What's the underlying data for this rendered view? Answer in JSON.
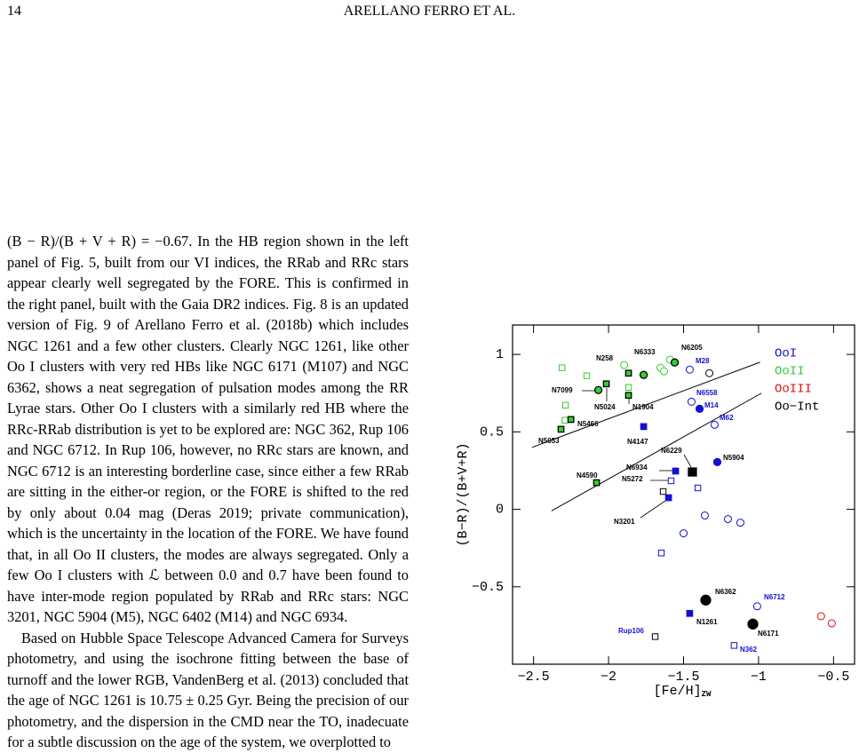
{
  "header": {
    "page": "14",
    "running_head": "ARELLANO FERRO ET AL."
  },
  "paragraphs": [
    "(B − R)/(B + V + R) = −0.67. In the HB region shown in the left panel of Fig. 5, built from our VI indices, the RRab and RRc stars appear clearly well segregated by the FORE. This is confirmed in the right panel, built with the Gaia DR2 indices. Fig. 8 is an updated version of Fig. 9 of Arellano Ferro et al. (2018b) which includes NGC 1261 and a few other clusters. Clearly NGC 1261, like other Oo I clusters with very red HBs like NGC 6171 (M107) and NGC 6362, shows a neat segregation of pulsation modes among the RR Lyrae stars. Other Oo I clusters with a similarly red HB where the RRc-RRab distribution is yet to be explored are: NGC 362, Rup 106 and NGC 6712. In Rup 106, however, no RRc stars are known, and NGC 6712 is an interesting borderline case, since either a few RRab are sitting in the either-or region, or the FORE is shifted to the red by only about 0.04 mag (Deras 2019; private communication), which is the uncertainty in the location of the FORE. We have found that, in all Oo II clusters, the modes are always segregated. Only a few Oo I clusters with ℒ between 0.0 and 0.7 have been found to have inter-mode region populated by RRab and RRc stars: NGC 3201, NGC 5904 (M5), NGC 6402 (M14) and NGC 6934.",
    "Based on Hubble Space Telescope Advanced Camera for Surveys photometry, and using the isochrone fitting between the base of turnoff and the lower RGB, VandenBerg et al. (2013) concluded that the age of NGC 1261 is 10.75 ± 0.25 Gyr. Being the precision of our photometry, and the dispersion in the CMD near the TO, inadecuate for a subtle discussion on the age of the system, we overplotted to"
  ],
  "chart_data": {
    "type": "scatter",
    "xlabel": "[Fe/H]",
    "xlabel_sub": "ZW",
    "ylabel": "(B−R)/(B+V+R)",
    "xlim": [
      -2.64,
      -0.36
    ],
    "ylim": [
      -1.0,
      1.19
    ],
    "xticks": [
      {
        "value": -2.5,
        "label": "−2.5"
      },
      {
        "value": -2,
        "label": "−2"
      },
      {
        "value": -1.5,
        "label": "−1.5"
      },
      {
        "value": -1,
        "label": "−1"
      },
      {
        "value": -0.5,
        "label": "−0.5"
      }
    ],
    "yticks": [
      {
        "value": -0.5,
        "label": "−0.5"
      },
      0,
      0.5,
      1
    ],
    "series": [
      {
        "name": "OoI",
        "color": "#1010d0",
        "edgecolor": "#1010d0",
        "x": [
          -1.459,
          -1.447,
          -1.293,
          -1.358,
          -1.5,
          -1.204,
          -1.121,
          -1.009,
          -1.393,
          -1.275,
          -1.405,
          -1.583,
          -1.648,
          -1.163,
          -1.766,
          -1.553,
          -1.6,
          -1.459
        ],
        "y": [
          0.902,
          0.695,
          0.546,
          -0.04,
          -0.155,
          -0.063,
          -0.086,
          -0.626,
          0.649,
          0.305,
          0.138,
          0.184,
          -0.282,
          -0.879,
          0.534,
          0.247,
          0.075,
          -0.672
        ],
        "markers": [
          "o",
          "o",
          "o",
          "o",
          "o",
          "o",
          "o",
          "o",
          "O",
          "O",
          "s",
          "s",
          "s",
          "s",
          "S",
          "S",
          "S",
          "S"
        ]
      },
      {
        "name": "OoII",
        "color": "#33cc33",
        "edgecolor": "#000000",
        "x": [
          -1.896,
          -1.654,
          -1.63,
          -1.59,
          -2.068,
          -1.766,
          -1.559,
          -2.31,
          -2.145,
          -2.287,
          -2.29,
          -1.867,
          -2.317,
          -2.251,
          -2.015,
          -1.867,
          -1.867,
          -2.08
        ],
        "y": [
          0.931,
          0.914,
          0.891,
          0.966,
          0.77,
          0.868,
          0.948,
          0.914,
          0.862,
          0.672,
          0.575,
          0.787,
          0.517,
          0.58,
          0.81,
          0.736,
          0.879,
          0.172
        ],
        "markers": [
          "o",
          "o",
          "o",
          "o",
          "O",
          "O",
          "O",
          "s",
          "s",
          "s",
          "s",
          "s",
          "S",
          "S",
          "S",
          "S",
          "S",
          "S"
        ]
      },
      {
        "name": "OoIII",
        "color": "#dd1010",
        "edgecolor": "#dd1010",
        "x": [
          -0.583,
          -0.512
        ],
        "y": [
          -0.69,
          -0.736
        ],
        "markers": [
          "o",
          "o"
        ]
      },
      {
        "name": "Oo−Int",
        "color": "#000000",
        "edgecolor": "#000000",
        "x": [
          -1.328,
          -1.636,
          -1.689,
          -1.352,
          -1.038,
          -1.441
        ],
        "y": [
          0.879,
          0.115,
          -0.822,
          -0.586,
          -0.741,
          0.241
        ],
        "markers": [
          "o",
          "s",
          "s",
          "O+",
          "O+",
          "S+"
        ]
      }
    ],
    "lines": [
      {
        "x": [
          -2.51,
          -0.99
        ],
        "y": [
          0.4,
          0.95
        ]
      },
      {
        "x": [
          -2.38,
          -0.98
        ],
        "y": [
          -0.01,
          0.75
        ]
      }
    ],
    "annotations": [
      {
        "text": "N6333",
        "color": "#000000"
      },
      {
        "text": "N6205",
        "color": "#000000"
      },
      {
        "text": "N258",
        "color": "#000000"
      },
      {
        "text": "M28",
        "color": "#1010d0"
      },
      {
        "text": "N7099",
        "color": "#000000"
      },
      {
        "text": "N5024",
        "color": "#000000"
      },
      {
        "text": "N1904",
        "color": "#000000"
      },
      {
        "text": "N6558",
        "color": "#1010d0"
      },
      {
        "text": "M14",
        "color": "#1010d0"
      },
      {
        "text": "M62",
        "color": "#1010d0"
      },
      {
        "text": "N5466",
        "color": "#000000"
      },
      {
        "text": "N5053",
        "color": "#000000"
      },
      {
        "text": "N4147",
        "color": "#000000"
      },
      {
        "text": "N6229",
        "color": "#000000"
      },
      {
        "text": "N5904",
        "color": "#000000"
      },
      {
        "text": "N6934",
        "color": "#000000"
      },
      {
        "text": "N4590",
        "color": "#000000"
      },
      {
        "text": "N5272",
        "color": "#000000"
      },
      {
        "text": "N3201",
        "color": "#000000"
      },
      {
        "text": "N6362",
        "color": "#000000"
      },
      {
        "text": "N6712",
        "color": "#1010d0"
      },
      {
        "text": "N1261",
        "color": "#000000"
      },
      {
        "text": "Rup106",
        "color": "#1010d0"
      },
      {
        "text": "N6171",
        "color": "#000000"
      },
      {
        "text": "N362",
        "color": "#1010d0"
      }
    ]
  }
}
